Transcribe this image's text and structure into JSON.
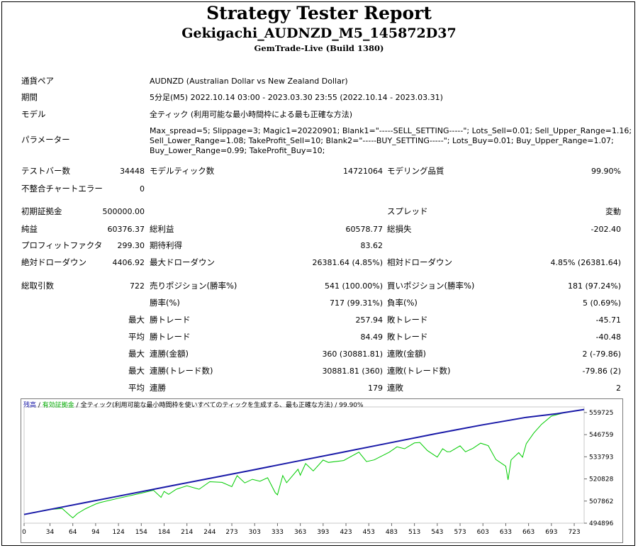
{
  "header": {
    "title": "Strategy Tester Report",
    "subtitle": "Gekigachi_AUDNZD_M5_145872D37",
    "server": "GemTrade-Live (Build 1380)"
  },
  "info": {
    "pair_label": "通貨ペア",
    "pair_value": "AUDNZD (Australian Dollar vs New Zealand Dollar)",
    "period_label": "期間",
    "period_value": "5分足(M5) 2022.10.14 03:00 - 2023.03.30 23:55 (2022.10.14 - 2023.03.31)",
    "model_label": "モデル",
    "model_value": "全ティック (利用可能な最小時間枠による最も正確な方法)",
    "params_label": "パラメーター",
    "params_line1": "Max_spread=5; Slippage=3; Magic1=20220901; Blank1=\"-----SELL_SETTING-----\"; Lots_Sell=0.01; Sell_Upper_Range=1.16;",
    "params_line2": "Sell_Lower_Range=1.08; TakeProfit_Sell=10; Blank2=\"-----BUY_SETTING-----\"; Lots_Buy=0.01; Buy_Upper_Range=1.07;",
    "params_line3": "Buy_Lower_Range=0.99; TakeProfit_Buy=10;"
  },
  "stats": {
    "bars_label": "テストバー数",
    "bars_value": "34448",
    "ticks_label": "モデルティック数",
    "ticks_value": "14721064",
    "quality_label": "モデリング品質",
    "quality_value": "99.90%",
    "mismatch_label": "不整合チャートエラー",
    "mismatch_value": "0",
    "deposit_label": "初期証拠金",
    "deposit_value": "500000.00",
    "spread_label": "スプレッド",
    "spread_value": "変動",
    "net_label": "純益",
    "net_value": "60376.37",
    "gross_profit_label": "総利益",
    "gross_profit_value": "60578.77",
    "gross_loss_label": "総損失",
    "gross_loss_value": "-202.40",
    "pf_label": "プロフィットファクタ",
    "pf_value": "299.30",
    "expected_label": "期待利得",
    "expected_value": "83.62",
    "abs_dd_label": "絶対ドローダウン",
    "abs_dd_value": "4406.92",
    "max_dd_label": "最大ドローダウン",
    "max_dd_value": "26381.64 (4.85%)",
    "rel_dd_label": "相対ドローダウン",
    "rel_dd_value": "4.85% (26381.64)",
    "trades_label": "総取引数",
    "trades_value": "722",
    "short_label": "売りポジション(勝率%)",
    "short_value": "541 (100.00%)",
    "long_label": "買いポジション(勝率%)",
    "long_value": "181 (97.24%)",
    "win_label": "勝率(%)",
    "win_value": "717 (99.31%)",
    "loss_label": "負率(%)",
    "loss_value": "5 (0.69%)",
    "max_word": "最大",
    "avg_word": "平均",
    "largest_win_label": "勝トレード",
    "largest_win_value": "257.94",
    "largest_loss_label": "敗トレード",
    "largest_loss_value": "-45.71",
    "avg_win_label": "勝トレード",
    "avg_win_value": "84.49",
    "avg_loss_label": "敗トレード",
    "avg_loss_value": "-40.48",
    "max_consec_wins_label": "連勝(金額)",
    "max_consec_wins_value": "360 (30881.81)",
    "max_consec_losses_label": "連敗(金額)",
    "max_consec_losses_value": "2 (-79.86)",
    "max_consec_profit_label": "連勝(トレード数)",
    "max_consec_profit_value": "30881.81 (360)",
    "max_consec_loss_label": "連敗(トレード数)",
    "max_consec_loss_value": "-79.86 (2)",
    "avg_consec_wins_label": "連勝",
    "avg_consec_wins_value": "179",
    "avg_consec_losses_label": "連敗",
    "avg_consec_losses_value": "2"
  },
  "chart_legend": {
    "balance": "残高",
    "sep1": " / ",
    "equity": "有効証拠金",
    "sep2": " / ",
    "desc": "全ティック(利用可能な最小時間枠を使いすべてのティックを生成する、最も正確な方法) / 99.90%"
  },
  "colors": {
    "balance": "#1a1aa8",
    "equity": "#00cc00",
    "balance_label": "#1a1aa8",
    "equity_label": "#00aa00"
  },
  "chart_data": {
    "type": "line",
    "x_ticks": [
      "0",
      "34",
      "64",
      "94",
      "124",
      "154",
      "184",
      "214",
      "244",
      "273",
      "303",
      "333",
      "363",
      "393",
      "423",
      "453",
      "483",
      "513",
      "543",
      "573",
      "603",
      "633",
      "663",
      "693",
      "723"
    ],
    "y_ticks": [
      "559725",
      "546759",
      "533793",
      "520828",
      "507862",
      "494896"
    ],
    "xlim": [
      0,
      736
    ],
    "ylim": [
      494896,
      563000
    ],
    "series": [
      {
        "name": "残高",
        "x": [
          0,
          60,
          120,
          180,
          240,
          300,
          360,
          420,
          480,
          540,
          600,
          660,
          700,
          736
        ],
        "y": [
          500000,
          505200,
          510400,
          515600,
          520800,
          526000,
          531300,
          536600,
          541900,
          547200,
          552300,
          556900,
          559000,
          561500
        ]
      },
      {
        "name": "有効証拠金",
        "x": [
          0,
          30,
          50,
          60,
          64,
          70,
          80,
          94,
          100,
          124,
          154,
          170,
          180,
          184,
          190,
          200,
          214,
          230,
          244,
          260,
          273,
          280,
          290,
          300,
          310,
          320,
          330,
          333,
          340,
          345,
          360,
          363,
          370,
          380,
          393,
          400,
          420,
          440,
          450,
          460,
          480,
          490,
          500,
          513,
          520,
          530,
          543,
          550,
          556,
          560,
          573,
          580,
          590,
          600,
          610,
          620,
          633,
          636,
          640,
          650,
          655,
          660,
          670,
          680,
          693,
          710,
          736
        ],
        "y": [
          500000,
          502800,
          503500,
          499500,
          498000,
          500500,
          503200,
          506100,
          507000,
          509500,
          512500,
          514200,
          510000,
          513500,
          511800,
          514800,
          516800,
          514800,
          519200,
          518800,
          516300,
          522700,
          518500,
          520600,
          519500,
          521500,
          512800,
          511500,
          522800,
          518600,
          526500,
          523000,
          529800,
          525500,
          531900,
          530500,
          531600,
          536500,
          531000,
          532000,
          536500,
          539600,
          538500,
          541900,
          542200,
          537400,
          533600,
          538500,
          536700,
          536800,
          540200,
          536700,
          538800,
          541800,
          540300,
          532200,
          528300,
          520300,
          532000,
          536200,
          533500,
          541500,
          547800,
          552800,
          557600,
          559600,
          561500
        ]
      }
    ]
  }
}
